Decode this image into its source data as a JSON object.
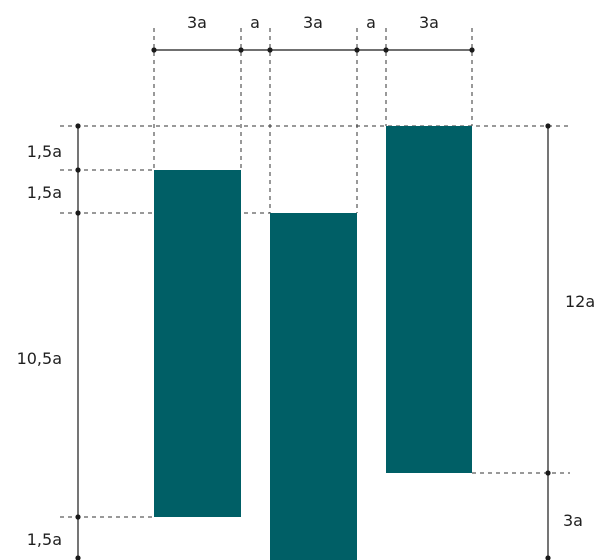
{
  "colors": {
    "bar": "#005F66",
    "line": "#1a1a1a"
  },
  "widths": {
    "bar_a": "3a",
    "gap_1": "a",
    "bar_b": "3a",
    "gap_2": "a",
    "bar_c": "3a"
  },
  "left_heights": {
    "top_1": "1,5a",
    "top_2": "1,5a",
    "middle": "10,5a",
    "bottom": "1,5a"
  },
  "right_heights": {
    "upper": "12a",
    "lower": "3a"
  }
}
